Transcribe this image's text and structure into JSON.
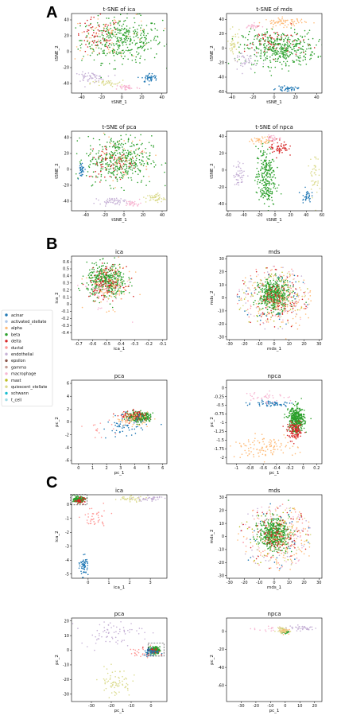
{
  "figure": {
    "panel_letters": [
      "A",
      "B",
      "C"
    ]
  },
  "legend": {
    "entries": [
      {
        "name": "acinar",
        "color": "#1f77b4"
      },
      {
        "name": "activated_stellate",
        "color": "#aec7e8"
      },
      {
        "name": "alpha",
        "color": "#ffbb78"
      },
      {
        "name": "beta",
        "color": "#2ca02c"
      },
      {
        "name": "delta",
        "color": "#d62728"
      },
      {
        "name": "ductal",
        "color": "#ff9896"
      },
      {
        "name": "endothelial",
        "color": "#c5b0d5"
      },
      {
        "name": "epsilon",
        "color": "#8c564b"
      },
      {
        "name": "gamma",
        "color": "#c49c94"
      },
      {
        "name": "macrophage",
        "color": "#f7b6d2"
      },
      {
        "name": "mast",
        "color": "#bcbd22"
      },
      {
        "name": "quiescent_stellate",
        "color": "#dbdb8d"
      },
      {
        "name": "schwann",
        "color": "#17becf"
      },
      {
        "name": "t_cell",
        "color": "#9edae5"
      }
    ]
  },
  "chart_data": [
    {
      "id": "A-ica",
      "type": "scatter",
      "title": "t-SNE of ica",
      "xlabel": "tSNE_1",
      "ylabel": "tSNE_2",
      "xlim": [
        -50,
        45
      ],
      "ylim": [
        -52,
        48
      ],
      "xticks": [
        -40,
        -20,
        0,
        20,
        40
      ],
      "yticks": [
        -40,
        -20,
        0,
        20,
        40
      ],
      "clusters": [
        {
          "label": "beta",
          "cx": 0,
          "cy": 15,
          "sx": 20,
          "sy": 14,
          "n": 380
        },
        {
          "label": "delta",
          "cx": -25,
          "cy": 18,
          "sx": 12,
          "sy": 12,
          "n": 70
        },
        {
          "label": "alpha",
          "cx": -10,
          "cy": 20,
          "sx": 22,
          "sy": 14,
          "n": 60
        },
        {
          "label": "endothelial",
          "cx": -32,
          "cy": -32,
          "sx": 8,
          "sy": 3,
          "n": 60
        },
        {
          "label": "quiescent_stellate",
          "cx": -15,
          "cy": -40,
          "sx": 8,
          "sy": 2,
          "n": 35
        },
        {
          "label": "macrophage",
          "cx": 5,
          "cy": -45,
          "sx": 6,
          "sy": 2,
          "n": 40
        },
        {
          "label": "acinar",
          "cx": 28,
          "cy": -33,
          "sx": 4,
          "sy": 3,
          "n": 45
        }
      ]
    },
    {
      "id": "A-mds",
      "type": "scatter",
      "title": "t-SNE of mds",
      "xlabel": "tSNE_1",
      "ylabel": "tSNE_2",
      "xlim": [
        -45,
        45
      ],
      "ylim": [
        -62,
        48
      ],
      "xticks": [
        -40,
        -20,
        0,
        20,
        40
      ],
      "yticks": [
        -60,
        -40,
        -20,
        0,
        20,
        40
      ],
      "clusters": [
        {
          "label": "beta",
          "cx": 5,
          "cy": 0,
          "sx": 17,
          "sy": 12,
          "n": 420
        },
        {
          "label": "alpha",
          "cx": 10,
          "cy": 36,
          "sx": 10,
          "sy": 3,
          "n": 70
        },
        {
          "label": "delta",
          "cx": 0,
          "cy": 8,
          "sx": 14,
          "sy": 10,
          "n": 60
        },
        {
          "label": "quiescent_stellate",
          "cx": -38,
          "cy": 5,
          "sx": 3,
          "sy": 9,
          "n": 45
        },
        {
          "label": "endothelial",
          "cx": -28,
          "cy": -18,
          "sx": 6,
          "sy": 8,
          "n": 45
        },
        {
          "label": "macrophage",
          "cx": -20,
          "cy": 30,
          "sx": 4,
          "sy": 2,
          "n": 25
        },
        {
          "label": "acinar",
          "cx": 12,
          "cy": -56,
          "sx": 5,
          "sy": 1.5,
          "n": 40
        }
      ]
    },
    {
      "id": "A-pca",
      "type": "scatter",
      "title": "t-SNE of pca",
      "xlabel": "tSNE_1",
      "ylabel": "tSNE_2",
      "xlim": [
        -55,
        45
      ],
      "ylim": [
        -52,
        48
      ],
      "xticks": [
        -40,
        -20,
        0,
        20,
        40
      ],
      "yticks": [
        -40,
        -20,
        0,
        20,
        40
      ],
      "clusters": [
        {
          "label": "beta",
          "cx": -5,
          "cy": 12,
          "sx": 17,
          "sy": 15,
          "n": 400
        },
        {
          "label": "delta",
          "cx": -12,
          "cy": 10,
          "sx": 13,
          "sy": 12,
          "n": 70
        },
        {
          "label": "alpha",
          "cx": 0,
          "cy": 15,
          "sx": 15,
          "sy": 14,
          "n": 50
        },
        {
          "label": "acinar",
          "cx": -45,
          "cy": 0,
          "sx": 2,
          "sy": 5,
          "n": 35
        },
        {
          "label": "endothelial",
          "cx": -12,
          "cy": -40,
          "sx": 7,
          "sy": 2,
          "n": 50
        },
        {
          "label": "macrophage",
          "cx": 10,
          "cy": -43,
          "sx": 4,
          "sy": 2,
          "n": 30
        },
        {
          "label": "quiescent_stellate",
          "cx": 33,
          "cy": -36,
          "sx": 5,
          "sy": 3,
          "n": 45
        }
      ]
    },
    {
      "id": "A-npca",
      "type": "scatter",
      "title": "t-SNE of npca",
      "xlabel": "tSNE_1",
      "ylabel": "tSNE_2",
      "xlim": [
        -62,
        60
      ],
      "ylim": [
        -48,
        46
      ],
      "xticks": [
        -60,
        -40,
        -20,
        0,
        20,
        40,
        60
      ],
      "yticks": [
        -40,
        -20,
        0,
        20,
        40
      ],
      "clusters": [
        {
          "label": "beta",
          "cx": -12,
          "cy": -10,
          "sx": 6,
          "sy": 18,
          "n": 260
        },
        {
          "label": "delta",
          "cx": 5,
          "cy": 28,
          "sx": 6,
          "sy": 6,
          "n": 60
        },
        {
          "label": "alpha",
          "cx": -15,
          "cy": 35,
          "sx": 8,
          "sy": 2,
          "n": 50
        },
        {
          "label": "macrophage",
          "cx": -2,
          "cy": 38,
          "sx": 5,
          "sy": 2,
          "n": 25
        },
        {
          "label": "endothelial",
          "cx": -45,
          "cy": -5,
          "sx": 4,
          "sy": 7,
          "n": 45
        },
        {
          "label": "quiescent_stellate",
          "cx": 50,
          "cy": -5,
          "sx": 3,
          "sy": 14,
          "n": 40
        },
        {
          "label": "acinar",
          "cx": 40,
          "cy": -30,
          "sx": 3,
          "sy": 4,
          "n": 30
        }
      ]
    },
    {
      "id": "B-ica",
      "type": "scatter",
      "title": "ica",
      "xlabel": "ica_1",
      "ylabel": "ica_2",
      "xlim": [
        -0.75,
        -0.07
      ],
      "ylim": [
        -0.5,
        0.68
      ],
      "xticks": [
        -0.7,
        -0.6,
        -0.5,
        -0.4,
        -0.3,
        -0.2,
        -0.1
      ],
      "yticks": [
        -0.4,
        -0.3,
        -0.2,
        -0.1,
        0.0,
        0.1,
        0.2,
        0.3,
        0.4,
        0.5,
        0.6
      ],
      "clusters": [
        {
          "label": "beta",
          "cx": -0.5,
          "cy": 0.33,
          "sx": 0.07,
          "sy": 0.12,
          "n": 420
        },
        {
          "label": "delta",
          "cx": -0.5,
          "cy": 0.3,
          "sx": 0.06,
          "sy": 0.11,
          "n": 120
        },
        {
          "label": "alpha",
          "cx": -0.48,
          "cy": 0.25,
          "sx": 0.08,
          "sy": 0.15,
          "n": 90
        },
        {
          "label": "macrophage",
          "cx": -0.52,
          "cy": 0.2,
          "sx": 0.08,
          "sy": 0.15,
          "n": 40
        }
      ]
    },
    {
      "id": "B-mds",
      "type": "scatter",
      "title": "mds",
      "xlabel": "mds_1",
      "ylabel": "mds_2",
      "xlim": [
        -32,
        32
      ],
      "ylim": [
        -32,
        32
      ],
      "xticks": [
        -30,
        -20,
        -10,
        0,
        10,
        20,
        30
      ],
      "yticks": [
        -30,
        -20,
        -10,
        0,
        10,
        20,
        30
      ],
      "clusters": [
        {
          "label": "beta",
          "cx": 0,
          "cy": 2,
          "sx": 5,
          "sy": 6,
          "n": 500
        },
        {
          "label": "delta",
          "cx": 2,
          "cy": 0,
          "sx": 5,
          "sy": 5,
          "n": 80
        },
        {
          "label": "alpha",
          "cx": 6,
          "cy": -2,
          "sx": 9,
          "sy": 10,
          "n": 110
        },
        {
          "label": "ring",
          "ring": 22,
          "n": 260
        }
      ]
    },
    {
      "id": "B-pca",
      "type": "scatter",
      "title": "pca",
      "xlabel": "pc_1",
      "ylabel": "pc_2",
      "xlim": [
        -0.5,
        6.3
      ],
      "ylim": [
        -6.5,
        6.5
      ],
      "xticks": [
        0,
        1,
        2,
        3,
        4,
        5,
        6
      ],
      "yticks": [
        -6,
        -4,
        -2,
        0,
        2,
        4,
        6
      ],
      "clusters": [
        {
          "label": "beta",
          "cx": 4.3,
          "cy": 0.8,
          "sx": 0.4,
          "sy": 0.35,
          "n": 380
        },
        {
          "label": "delta",
          "cx": 4.0,
          "cy": 0.9,
          "sx": 0.5,
          "sy": 0.4,
          "n": 80
        },
        {
          "label": "alpha",
          "cx": 3.8,
          "cy": 0.5,
          "sx": 0.6,
          "sy": 0.5,
          "n": 70
        },
        {
          "label": "acinar",
          "cx": 3.4,
          "cy": -0.7,
          "sx": 0.7,
          "sy": 0.9,
          "n": 60
        },
        {
          "label": "ductal",
          "cx": 1.5,
          "cy": -1.2,
          "sx": 0.5,
          "sy": 0.8,
          "n": 15
        }
      ]
    },
    {
      "id": "B-npca",
      "type": "scatter",
      "title": "npca",
      "xlabel": "pc_1",
      "ylabel": "pc_2",
      "xlim": [
        -1.15,
        0.28
      ],
      "ylim": [
        -2.18,
        0.22
      ],
      "xticks": [
        -1.0,
        -0.8,
        -0.6,
        -0.4,
        -0.2,
        0.0,
        0.2
      ],
      "yticks": [
        -2.0,
        -1.75,
        -1.5,
        -1.25,
        -1.0,
        -0.75,
        -0.5,
        -0.25,
        0.0
      ],
      "clusters": [
        {
          "label": "beta",
          "cx": -0.1,
          "cy": -0.9,
          "sx": 0.06,
          "sy": 0.18,
          "n": 380
        },
        {
          "label": "delta",
          "cx": -0.12,
          "cy": -1.25,
          "sx": 0.06,
          "sy": 0.12,
          "n": 120
        },
        {
          "label": "alpha",
          "cx": -0.6,
          "cy": -1.7,
          "sx": 0.25,
          "sy": 0.15,
          "n": 110
        },
        {
          "label": "acinar",
          "cx": -0.45,
          "cy": -0.45,
          "sx": 0.15,
          "sy": 0.04,
          "n": 60
        },
        {
          "label": "macrophage",
          "cx": -0.6,
          "cy": -0.25,
          "sx": 0.15,
          "sy": 0.1,
          "n": 40
        }
      ]
    },
    {
      "id": "C-ica",
      "type": "scatter",
      "title": "ica",
      "xlabel": "ica_1",
      "ylabel": "ica_2",
      "xlim": [
        -0.8,
        3.8
      ],
      "ylim": [
        -5.3,
        0.7
      ],
      "xticks": [
        0,
        1,
        2,
        3
      ],
      "yticks": [
        -5,
        -4,
        -3,
        -2,
        -1,
        0
      ],
      "clusters": [
        {
          "label": "beta",
          "cx": -0.45,
          "cy": 0.35,
          "sx": 0.12,
          "sy": 0.1,
          "n": 220
        },
        {
          "label": "delta",
          "cx": -0.4,
          "cy": 0.3,
          "sx": 0.12,
          "sy": 0.1,
          "n": 40
        },
        {
          "label": "acinar",
          "cx": -0.2,
          "cy": -4.4,
          "sx": 0.1,
          "sy": 0.35,
          "n": 60
        },
        {
          "label": "ductal",
          "cx": 0.3,
          "cy": -1.0,
          "sx": 0.3,
          "sy": 0.4,
          "n": 40
        },
        {
          "label": "quiescent_stellate",
          "cx": 2.0,
          "cy": 0.4,
          "sx": 0.4,
          "sy": 0.1,
          "n": 40
        },
        {
          "label": "endothelial",
          "cx": 3.0,
          "cy": 0.4,
          "sx": 0.3,
          "sy": 0.1,
          "n": 40
        }
      ]
    },
    {
      "id": "C-mds",
      "type": "scatter",
      "title": "mds",
      "xlabel": "mds_1",
      "ylabel": "mds_2",
      "xlim": [
        -32,
        32
      ],
      "ylim": [
        -32,
        32
      ],
      "xticks": [
        -30,
        -20,
        -10,
        0,
        10,
        20,
        30
      ],
      "yticks": [
        -30,
        -20,
        -10,
        0,
        10,
        20,
        30
      ],
      "clusters": [
        {
          "label": "beta",
          "cx": 0,
          "cy": 2,
          "sx": 5,
          "sy": 6,
          "n": 500
        },
        {
          "label": "delta",
          "cx": 2,
          "cy": 0,
          "sx": 5,
          "sy": 5,
          "n": 80
        },
        {
          "label": "alpha",
          "cx": 6,
          "cy": -2,
          "sx": 9,
          "sy": 10,
          "n": 110
        },
        {
          "label": "ring",
          "ring": 22,
          "n": 260
        }
      ]
    },
    {
      "id": "C-pca",
      "type": "scatter",
      "title": "pca",
      "xlabel": "pc_1",
      "ylabel": "pc_2",
      "xlim": [
        -40,
        8
      ],
      "ylim": [
        -35,
        22
      ],
      "xticks": [
        -30,
        -20,
        -10,
        0
      ],
      "yticks": [
        -30,
        -20,
        -10,
        0,
        10,
        20
      ],
      "clusters": [
        {
          "label": "beta",
          "cx": 2,
          "cy": 0,
          "sx": 1.2,
          "sy": 1.2,
          "n": 220
        },
        {
          "label": "delta",
          "cx": 1,
          "cy": -0.5,
          "sx": 1.5,
          "sy": 1.2,
          "n": 40
        },
        {
          "label": "acinar",
          "cx": 0,
          "cy": -1,
          "sx": 2,
          "sy": 1.5,
          "n": 50
        },
        {
          "label": "quiescent_stellate",
          "cx": -18,
          "cy": -22,
          "sx": 4,
          "sy": 5,
          "n": 70
        },
        {
          "label": "endothelial",
          "cx": -20,
          "cy": 12,
          "sx": 8,
          "sy": 4,
          "n": 70
        },
        {
          "label": "ductal",
          "cx": -5,
          "cy": -2,
          "sx": 3,
          "sy": 2,
          "n": 25
        }
      ]
    },
    {
      "id": "C-npca",
      "type": "scatter",
      "title": "npca",
      "xlabel": "pc_1",
      "ylabel": "pc_2",
      "xlim": [
        -40,
        25
      ],
      "ylim": [
        -78,
        15
      ],
      "xticks": [
        -30,
        -20,
        -10,
        0,
        10,
        20
      ],
      "yticks": [
        -60,
        -40,
        -20,
        0
      ],
      "clusters": [
        {
          "label": "beta",
          "cx": 0,
          "cy": 0,
          "sx": 1,
          "sy": 1,
          "n": 120
        },
        {
          "label": "alpha",
          "cx": -1,
          "cy": 1,
          "sx": 1.5,
          "sy": 1.5,
          "n": 50
        },
        {
          "label": "quiescent_stellate",
          "cx": -3,
          "cy": 2,
          "sx": 2,
          "sy": 2,
          "n": 30
        },
        {
          "label": "endothelial",
          "cx": 12,
          "cy": 4,
          "sx": 5,
          "sy": 1.5,
          "n": 40
        },
        {
          "label": "macrophage",
          "cx": -15,
          "cy": 2,
          "sx": 8,
          "sy": 2,
          "n": 15
        }
      ]
    }
  ]
}
